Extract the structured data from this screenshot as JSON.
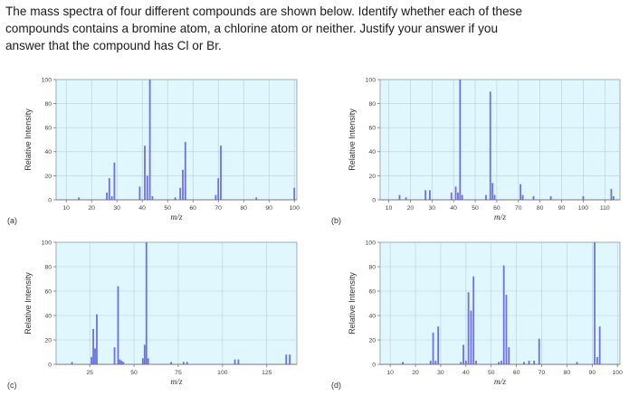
{
  "question": {
    "lines": [
      "The mass spectra of four different compounds are shown below. Identify whether each of these",
      "compounds contains a bromine atom, a chlorine atom or neither. Justify your answer if you",
      "answer that the compound has Cl or Br."
    ]
  },
  "colors": {
    "bar": "#6f6fe6",
    "plot_background": "#e0f7fd"
  },
  "chart_data": [
    {
      "type": "bar",
      "panel_label": "(a)",
      "xlabel": "m/z",
      "ylabel": "Relative Intensity",
      "xlim": [
        6,
        101
      ],
      "ylim": [
        0,
        100
      ],
      "xticks": [
        10,
        20,
        30,
        40,
        50,
        60,
        70,
        80,
        90,
        100
      ],
      "yticks": [
        0,
        20,
        40,
        60,
        80,
        100
      ],
      "grid": true,
      "x": [
        15,
        26,
        27,
        28,
        29,
        39,
        41,
        42,
        43,
        44,
        53,
        55,
        56,
        57,
        69,
        70,
        71,
        85,
        100
      ],
      "values": [
        2,
        6,
        18,
        3,
        31,
        11,
        45,
        20,
        100,
        3,
        2,
        10,
        25,
        48,
        4,
        18,
        45,
        2,
        10
      ]
    },
    {
      "type": "bar",
      "panel_label": "(b)",
      "xlabel": "m/z",
      "ylabel": "Relative Intensity",
      "xlim": [
        6,
        117
      ],
      "ylim": [
        0,
        100
      ],
      "xticks": [
        10,
        20,
        30,
        40,
        50,
        60,
        70,
        80,
        90,
        100,
        110
      ],
      "yticks": [
        0,
        20,
        40,
        60,
        80,
        100
      ],
      "grid": true,
      "x": [
        15,
        18,
        27,
        29,
        39,
        41,
        42,
        43,
        44,
        55,
        57,
        58,
        59,
        71,
        72,
        77,
        85,
        100,
        113,
        114
      ],
      "values": [
        4,
        2,
        8,
        8,
        6,
        11,
        6,
        100,
        4,
        4,
        90,
        14,
        4,
        13,
        4,
        3,
        3,
        3,
        9,
        3
      ]
    },
    {
      "type": "bar",
      "panel_label": "(c)",
      "xlabel": "m/z",
      "ylabel": "Relative Intensity",
      "xlim": [
        6,
        142
      ],
      "ylim": [
        0,
        100
      ],
      "xticks": [
        25,
        50,
        75,
        100,
        125
      ],
      "yticks": [
        0,
        20,
        40,
        60,
        80,
        100
      ],
      "grid": true,
      "x": [
        15,
        26,
        27,
        28,
        29,
        39,
        41,
        42,
        43,
        44,
        55,
        56,
        57,
        58,
        71,
        78,
        80,
        107,
        109,
        136,
        138
      ],
      "values": [
        2,
        6,
        29,
        13,
        41,
        14,
        64,
        4,
        3,
        2,
        5,
        16,
        100,
        5,
        2,
        2,
        2,
        4,
        4,
        8,
        8
      ]
    },
    {
      "type": "bar",
      "panel_label": "(d)",
      "xlabel": "m/z",
      "ylabel": "Relative Intensity",
      "xlim": [
        6,
        101
      ],
      "ylim": [
        0,
        100
      ],
      "xticks": [
        10,
        20,
        30,
        40,
        50,
        60,
        70,
        80,
        90,
        100
      ],
      "yticks": [
        0,
        20,
        40,
        60,
        80,
        100
      ],
      "grid": true,
      "x": [
        15,
        26,
        27,
        28,
        29,
        38,
        39,
        40,
        41,
        42,
        43,
        44,
        53,
        54,
        55,
        56,
        57,
        63,
        65,
        67,
        69,
        84,
        91,
        92,
        93
      ],
      "values": [
        2,
        3,
        26,
        3,
        31,
        2,
        16,
        3,
        59,
        44,
        72,
        3,
        2,
        3,
        81,
        57,
        14,
        2,
        3,
        3,
        21,
        2,
        100,
        6,
        31
      ]
    }
  ]
}
